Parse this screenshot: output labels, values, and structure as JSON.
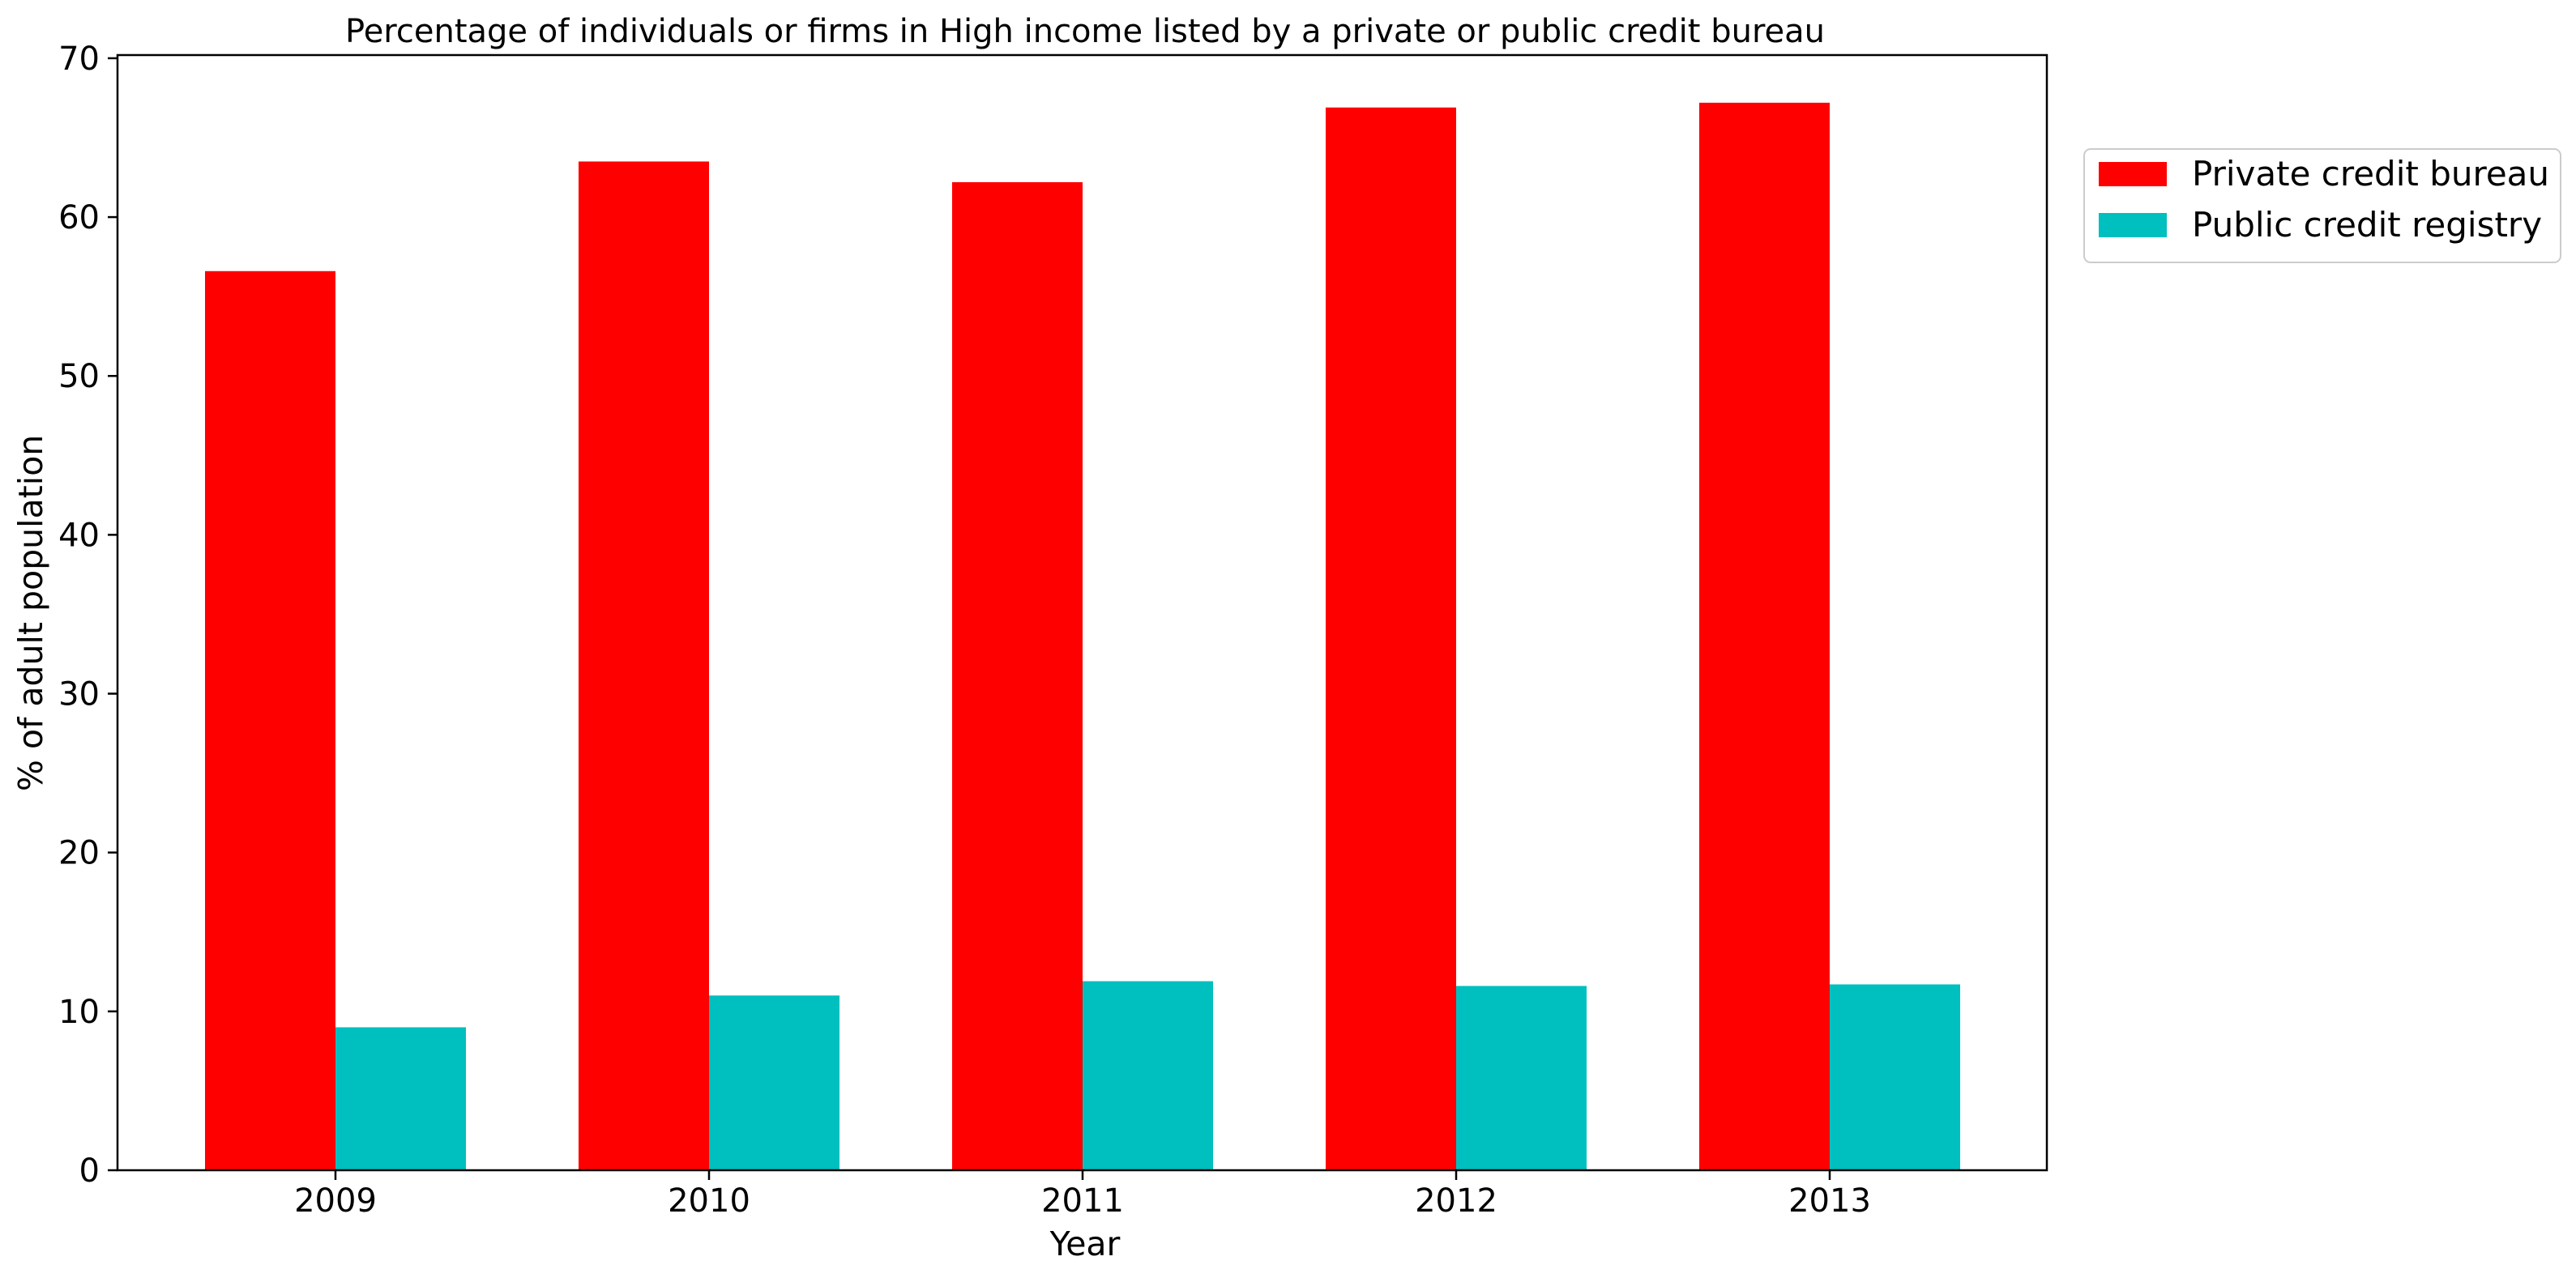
{
  "chart_data": {
    "type": "bar",
    "title": "Percentage of individuals or firms in High income listed by a private or public credit bureau",
    "xlabel": "Year",
    "ylabel": "% of adult population",
    "categories": [
      "2009",
      "2010",
      "2011",
      "2012",
      "2013"
    ],
    "series": [
      {
        "name": "Private credit bureau",
        "color": "#ff0000",
        "values": [
          56.6,
          63.5,
          62.2,
          66.9,
          67.2
        ]
      },
      {
        "name": "Public credit registry",
        "color": "#00bfbf",
        "values": [
          9.0,
          11.0,
          11.9,
          11.6,
          11.7
        ]
      }
    ],
    "ylim": [
      0,
      70
    ],
    "yticks": [
      0,
      10,
      20,
      30,
      40,
      50,
      60,
      70
    ],
    "grid": false,
    "legend_position": "outside right, top"
  }
}
